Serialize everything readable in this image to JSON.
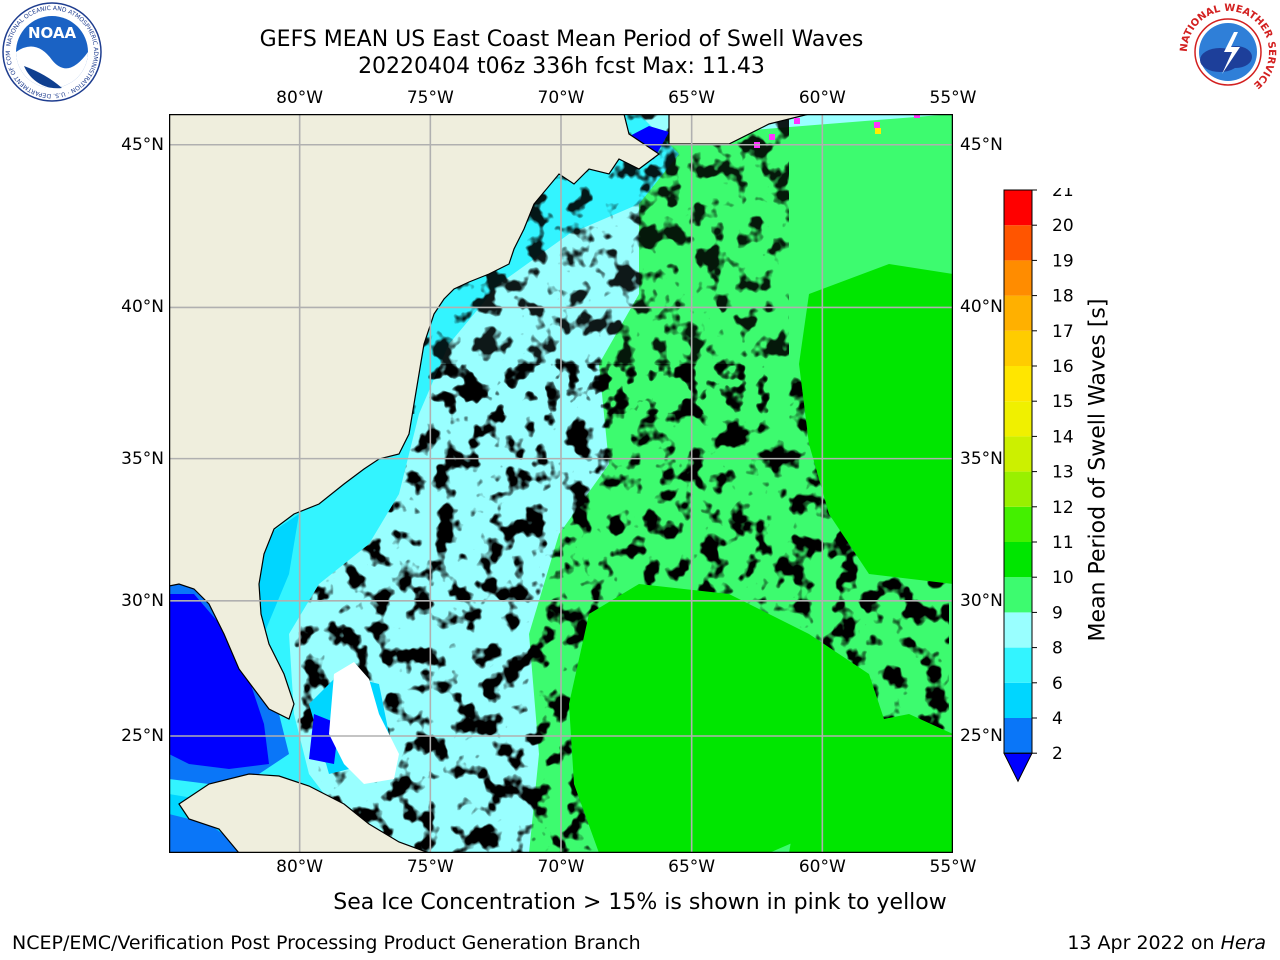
{
  "header": {
    "title_line1": "GEFS MEAN US East Coast Mean Period of Swell Waves",
    "title_line2": "20220404 t06z 336h fcst   Max: 11.43"
  },
  "logos": {
    "left": {
      "name": "noaa-logo",
      "text": "NOAA",
      "ring_text": "NATIONAL OCEANIC AND ATMOSPHERIC ADMINISTRATION · U.S. DEPARTMENT OF COMMERCE"
    },
    "right": {
      "name": "nws-logo",
      "ring_text": "NATIONAL WEATHER SERVICE"
    }
  },
  "map": {
    "lon_labels": [
      "80°W",
      "75°W",
      "70°W",
      "65°W",
      "60°W",
      "55°W"
    ],
    "lat_labels": [
      "45°N",
      "40°N",
      "35°N",
      "30°N",
      "25°N"
    ],
    "lon_range": [
      -85,
      -55
    ],
    "lat_range": [
      20.5,
      45.9
    ],
    "land_color": "#efeedd",
    "grid_color": "#b0b0b0"
  },
  "colorbar": {
    "label": "Mean Period of Swell Waves [s]",
    "levels": [
      "2",
      "4",
      "6",
      "8",
      "9",
      "10",
      "11",
      "12",
      "13",
      "14",
      "15",
      "16",
      "17",
      "18",
      "19",
      "20",
      "21"
    ],
    "colors": [
      "#0a76f8",
      "#00d6ff",
      "#33f4ff",
      "#99ffff",
      "#3dfb6f",
      "#00e600",
      "#44f000",
      "#99f000",
      "#ccf000",
      "#f0f000",
      "#ffe600",
      "#ffcc00",
      "#ffb000",
      "#ff8c00",
      "#ff5500",
      "#ff2a00",
      "#ff0000"
    ],
    "extend_color": "#0000ff"
  },
  "footer": {
    "sea_ice_note": "Sea Ice Concentration > 15% is shown in pink to yellow",
    "credit_left": "NCEP/EMC/Verification Post Processing Product Generation Branch",
    "credit_date": "13 Apr 2022 on ",
    "credit_host": "Hera"
  }
}
